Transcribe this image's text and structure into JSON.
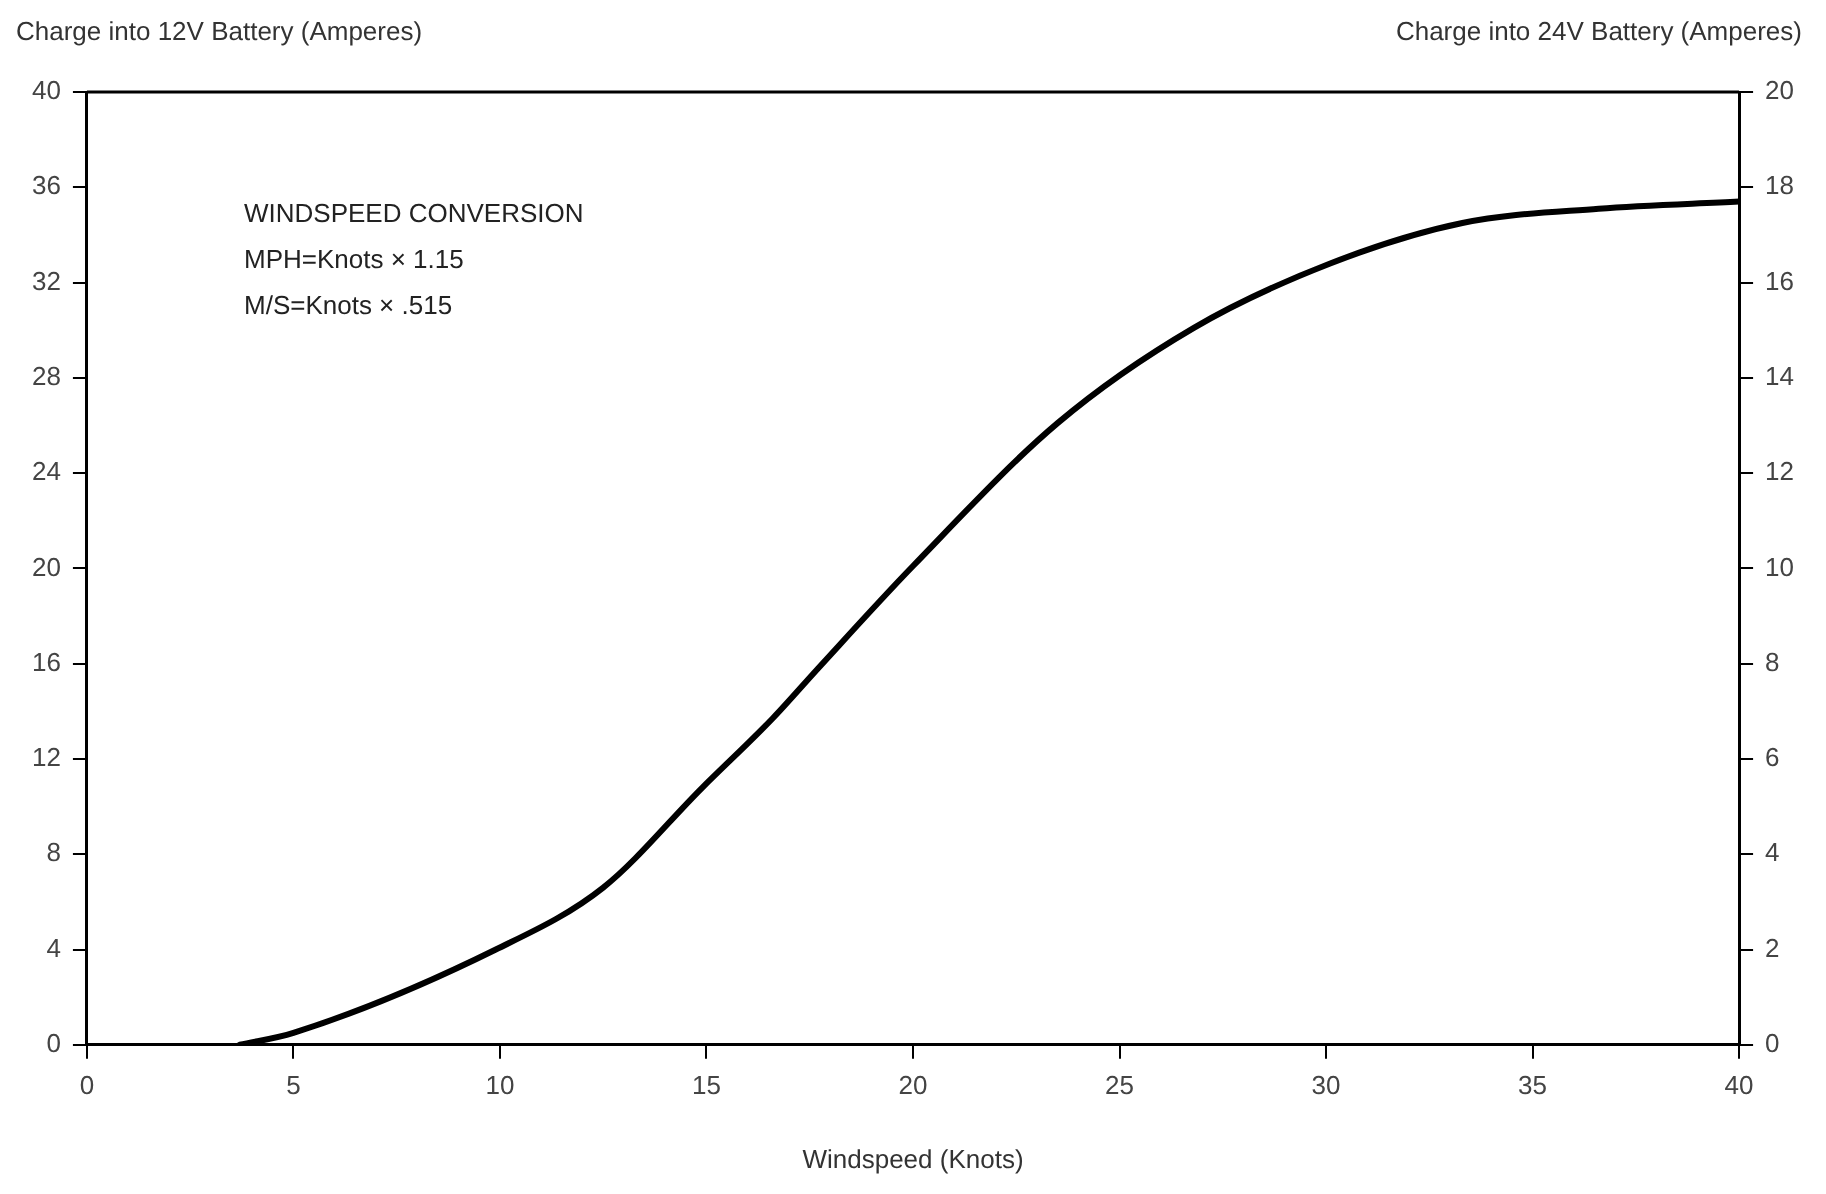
{
  "chart_data": {
    "type": "line",
    "xlabel": "Windspeed (Knots)",
    "ylabel": "Charge into 12V Battery (Amperes)",
    "y2label": "Charge into 24V Battery (Amperes)",
    "annotations": [
      "WINDSPEED CONVERSION",
      "MPH=Knots × 1.15",
      "M/S=Knots × .515"
    ],
    "series": [
      {
        "color": "#000000",
        "x": [
          3.7,
          5,
          9.9,
          12.5,
          14.9,
          16.6,
          17.7,
          20.0,
          23.5,
          26.8,
          30.1,
          33.3,
          36.6,
          40
        ],
        "values": [
          0,
          0.5,
          4.0,
          6.6,
          10.8,
          13.7,
          15.8,
          20.1,
          26.1,
          30.1,
          32.8,
          34.5,
          35.1,
          35.4
        ]
      }
    ],
    "xlim": [
      0,
      40
    ],
    "xticks": [
      0,
      5,
      10,
      15,
      20,
      25,
      30,
      35,
      40
    ],
    "ylim": [
      0,
      40
    ],
    "yticks": [
      0,
      4,
      8,
      12,
      16,
      20,
      24,
      28,
      32,
      36,
      40
    ],
    "y2lim": [
      0,
      20
    ],
    "y2ticks": [
      0,
      2,
      4,
      6,
      8,
      10,
      12,
      14,
      16,
      18,
      20
    ],
    "grid": false,
    "legend": false,
    "marker": "none",
    "line_style": "solid"
  }
}
